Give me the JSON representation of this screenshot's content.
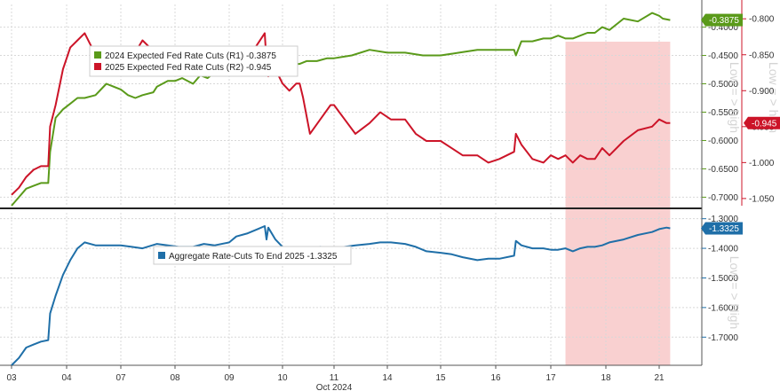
{
  "chart_data": [
    {
      "type": "line",
      "panel": "top",
      "x_axis_label": "Oct 2024",
      "categories": [
        "03",
        "04",
        "07",
        "08",
        "09",
        "10",
        "11",
        "14",
        "15",
        "16",
        "17",
        "18",
        "21"
      ],
      "legend_position": "top-left",
      "shaded_region": {
        "from": 18.4,
        "to": 21.3,
        "color": "#f8c8c8"
      },
      "right_axis_1": {
        "title": "Low = > high",
        "ticks": [
          "-0.7000",
          "-0.6500",
          "-0.6000",
          "-0.5500",
          "-0.5000",
          "-0.4500",
          "-0.4000"
        ],
        "ylim": [
          -0.715,
          -0.36
        ]
      },
      "right_axis_2": {
        "title": "Low = > high",
        "ticks": [
          "-1.050",
          "-1.000",
          "-0.950",
          "-0.900",
          "-0.850",
          "-0.800"
        ],
        "ylim": [
          -1.06,
          -0.78
        ]
      },
      "series": [
        {
          "name": "2024 Expected Fed Rate Cuts (R1)",
          "last_label": "-0.3875",
          "badge": "-0.3875",
          "color": "#5a9a1a",
          "axis": "right_axis_1",
          "x": [
            3.0,
            3.2,
            3.4,
            3.6,
            3.8,
            4.0,
            4.05,
            4.2,
            4.4,
            4.6,
            4.8,
            5.0,
            5.3,
            5.6,
            6.0,
            6.2,
            6.4,
            6.6,
            6.9,
            7.0,
            7.15,
            7.3,
            7.5,
            7.7,
            8.0,
            8.2,
            8.4,
            8.6,
            8.8,
            9.0,
            9.2,
            9.4,
            9.6,
            9.8,
            10.0,
            10.1,
            10.2,
            10.3,
            10.4,
            10.6,
            10.8,
            11.0,
            11.2,
            11.5,
            11.8,
            12.0,
            12.5,
            13.0,
            13.5,
            14.0,
            14.5,
            15.0,
            15.5,
            16.0,
            16.5,
            17.0,
            17.05,
            17.2,
            17.5,
            17.8,
            18.0,
            18.2,
            18.4,
            18.6,
            18.8,
            19.0,
            19.2,
            19.4,
            19.6,
            20.0,
            20.4,
            20.8,
            21.0,
            21.1,
            21.3
          ],
          "y": [
            -0.715,
            -0.7,
            -0.685,
            -0.68,
            -0.675,
            -0.675,
            -0.62,
            -0.56,
            -0.545,
            -0.535,
            -0.525,
            -0.525,
            -0.52,
            -0.5,
            -0.51,
            -0.52,
            -0.525,
            -0.52,
            -0.515,
            -0.505,
            -0.5,
            -0.495,
            -0.495,
            -0.49,
            -0.5,
            -0.485,
            -0.49,
            -0.48,
            -0.47,
            -0.47,
            -0.47,
            -0.46,
            -0.465,
            -0.46,
            -0.445,
            -0.46,
            -0.44,
            -0.47,
            -0.465,
            -0.47,
            -0.465,
            -0.465,
            -0.46,
            -0.46,
            -0.455,
            -0.455,
            -0.45,
            -0.44,
            -0.445,
            -0.445,
            -0.45,
            -0.45,
            -0.445,
            -0.44,
            -0.44,
            -0.44,
            -0.45,
            -0.425,
            -0.425,
            -0.42,
            -0.42,
            -0.415,
            -0.42,
            -0.42,
            -0.415,
            -0.41,
            -0.41,
            -0.4,
            -0.405,
            -0.385,
            -0.39,
            -0.375,
            -0.38,
            -0.385,
            -0.3875
          ]
        },
        {
          "name": "2025 Expected Fed Rate Cuts (R2)",
          "last_label": "-0.945",
          "badge": "-0.945",
          "color": "#cc1428",
          "axis": "right_axis_2",
          "x": [
            3.0,
            3.2,
            3.4,
            3.6,
            3.8,
            4.0,
            4.05,
            4.2,
            4.4,
            4.6,
            4.8,
            5.0,
            5.3,
            5.6,
            6.0,
            6.3,
            6.6,
            7.0,
            7.3,
            7.6,
            8.0,
            8.3,
            8.6,
            9.0,
            9.3,
            9.6,
            10.0,
            10.05,
            10.1,
            10.3,
            10.5,
            10.7,
            10.9,
            11.0,
            11.1,
            11.3,
            11.6,
            11.9,
            12.0,
            12.3,
            12.6,
            13.0,
            13.3,
            13.6,
            14.0,
            14.3,
            14.6,
            15.0,
            15.3,
            15.6,
            16.0,
            16.3,
            16.6,
            17.0,
            17.05,
            17.2,
            17.5,
            17.8,
            18.0,
            18.2,
            18.4,
            18.6,
            18.8,
            19.0,
            19.2,
            19.4,
            19.6,
            20.0,
            20.4,
            20.8,
            21.0,
            21.2,
            21.3
          ],
          "y": [
            -1.045,
            -1.035,
            -1.02,
            -1.01,
            -1.005,
            -1.005,
            -0.95,
            -0.92,
            -0.87,
            -0.84,
            -0.83,
            -0.82,
            -0.85,
            -0.86,
            -0.85,
            -0.855,
            -0.83,
            -0.85,
            -0.86,
            -0.86,
            -0.86,
            -0.855,
            -0.865,
            -0.86,
            -0.86,
            -0.85,
            -0.82,
            -0.86,
            -0.88,
            -0.87,
            -0.89,
            -0.9,
            -0.89,
            -0.89,
            -0.91,
            -0.96,
            -0.94,
            -0.92,
            -0.92,
            -0.94,
            -0.96,
            -0.945,
            -0.93,
            -0.94,
            -0.94,
            -0.96,
            -0.97,
            -0.97,
            -0.98,
            -0.99,
            -0.99,
            -1.0,
            -0.995,
            -0.985,
            -0.96,
            -0.975,
            -0.995,
            -1.0,
            -0.99,
            -0.995,
            -0.99,
            -1.0,
            -0.99,
            -0.995,
            -0.995,
            -0.98,
            -0.99,
            -0.97,
            -0.955,
            -0.95,
            -0.94,
            -0.945,
            -0.945
          ]
        }
      ]
    },
    {
      "type": "line",
      "panel": "bottom",
      "x_axis_label": "Oct 2024",
      "categories": [
        "03",
        "04",
        "07",
        "08",
        "09",
        "10",
        "11",
        "14",
        "15",
        "16",
        "17",
        "18",
        "21"
      ],
      "legend_position": "top-center",
      "shaded_region": {
        "from": 18.4,
        "to": 21.3,
        "color": "#f8c8c8"
      },
      "right_axis": {
        "title": "Low = > High",
        "ticks": [
          "-1.7000",
          "-1.6000",
          "-1.5000",
          "-1.4000",
          "-1.3000"
        ],
        "ylim": [
          -1.795,
          -1.28
        ]
      },
      "series": [
        {
          "name": "Aggregate Rate-Cuts To End 2025",
          "last_label": "-1.3325",
          "badge": "-1.3325",
          "color": "#1f6fa8",
          "x": [
            3.0,
            3.2,
            3.4,
            3.6,
            3.8,
            4.0,
            4.05,
            4.2,
            4.4,
            4.6,
            4.8,
            5.0,
            5.3,
            5.6,
            6.0,
            6.3,
            6.6,
            7.0,
            7.3,
            7.6,
            8.0,
            8.3,
            8.6,
            9.0,
            9.2,
            9.5,
            9.8,
            10.0,
            10.05,
            10.1,
            10.3,
            10.5,
            10.8,
            11.0,
            11.3,
            11.6,
            12.0,
            12.3,
            12.6,
            13.0,
            13.3,
            13.6,
            14.0,
            14.3,
            14.6,
            15.0,
            15.3,
            15.6,
            16.0,
            16.3,
            16.6,
            17.0,
            17.05,
            17.2,
            17.5,
            17.8,
            18.0,
            18.2,
            18.4,
            18.6,
            18.8,
            19.0,
            19.2,
            19.4,
            19.6,
            20.0,
            20.4,
            20.8,
            21.0,
            21.2,
            21.3
          ],
          "y": [
            -1.795,
            -1.77,
            -1.735,
            -1.725,
            -1.715,
            -1.71,
            -1.62,
            -1.56,
            -1.49,
            -1.44,
            -1.4,
            -1.38,
            -1.39,
            -1.39,
            -1.39,
            -1.395,
            -1.4,
            -1.385,
            -1.39,
            -1.395,
            -1.395,
            -1.385,
            -1.39,
            -1.38,
            -1.36,
            -1.35,
            -1.335,
            -1.325,
            -1.37,
            -1.33,
            -1.37,
            -1.395,
            -1.4,
            -1.405,
            -1.4,
            -1.395,
            -1.4,
            -1.395,
            -1.39,
            -1.385,
            -1.38,
            -1.38,
            -1.385,
            -1.395,
            -1.41,
            -1.415,
            -1.42,
            -1.43,
            -1.44,
            -1.435,
            -1.435,
            -1.425,
            -1.375,
            -1.39,
            -1.4,
            -1.4,
            -1.405,
            -1.405,
            -1.4,
            -1.41,
            -1.4,
            -1.395,
            -1.395,
            -1.39,
            -1.38,
            -1.37,
            -1.355,
            -1.345,
            -1.335,
            -1.33,
            -1.3325
          ]
        }
      ]
    }
  ]
}
